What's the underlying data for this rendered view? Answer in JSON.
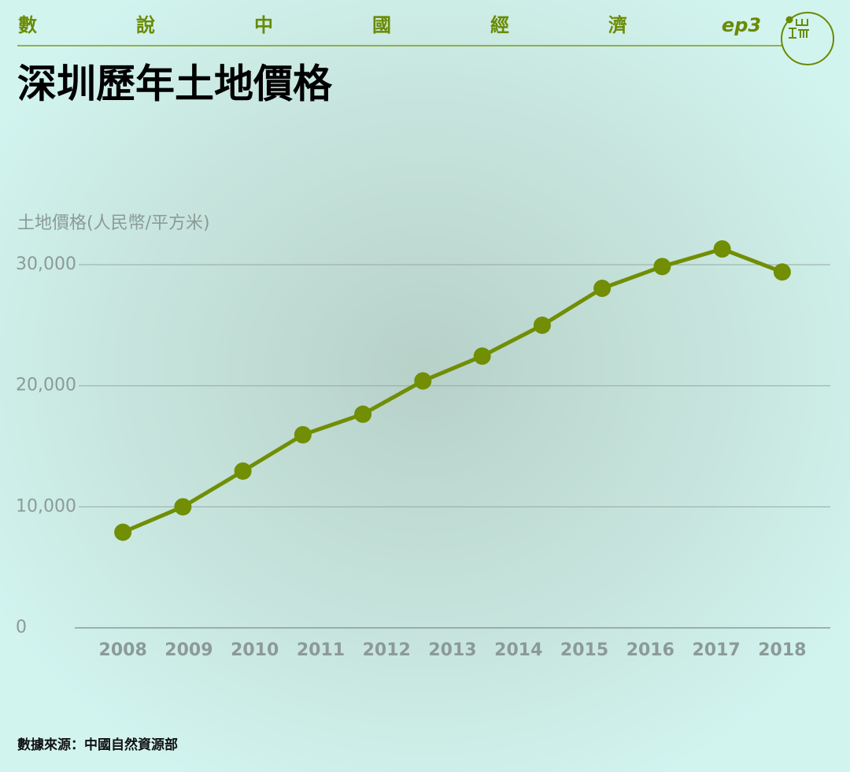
{
  "header": {
    "series_title": [
      "數",
      "說",
      "中",
      "國",
      "經",
      "濟"
    ],
    "episode": "ep3"
  },
  "chart_data": {
    "type": "line",
    "title": "深圳歷年土地價格",
    "y_label": "土地價格(人民幣/平方米)",
    "source": "數據來源：中國自然資源部",
    "x": [
      2008,
      2008.91,
      2009.82,
      2010.73,
      2011.64,
      2012.55,
      2013.45,
      2014.36,
      2015.27,
      2016.18,
      2017.09,
      2018
    ],
    "series": [
      {
        "name": "土地價格",
        "color": "#718e04",
        "values": [
          7900,
          10000,
          12950,
          15950,
          17650,
          20400,
          22450,
          25000,
          28050,
          29850,
          31300,
          29400
        ]
      }
    ],
    "xlim": [
      2007.27,
      2018.73
    ],
    "xticks": [
      2008,
      2009,
      2010,
      2011,
      2012,
      2013,
      2014,
      2015,
      2016,
      2017,
      2018
    ],
    "ylim": [
      0,
      32000
    ],
    "yticks": [
      0,
      {
        "value": 10000,
        "label": "10,000"
      },
      {
        "value": 20000,
        "label": "20,000"
      },
      {
        "value": 30000,
        "label": "30,000"
      }
    ],
    "grid": true
  }
}
